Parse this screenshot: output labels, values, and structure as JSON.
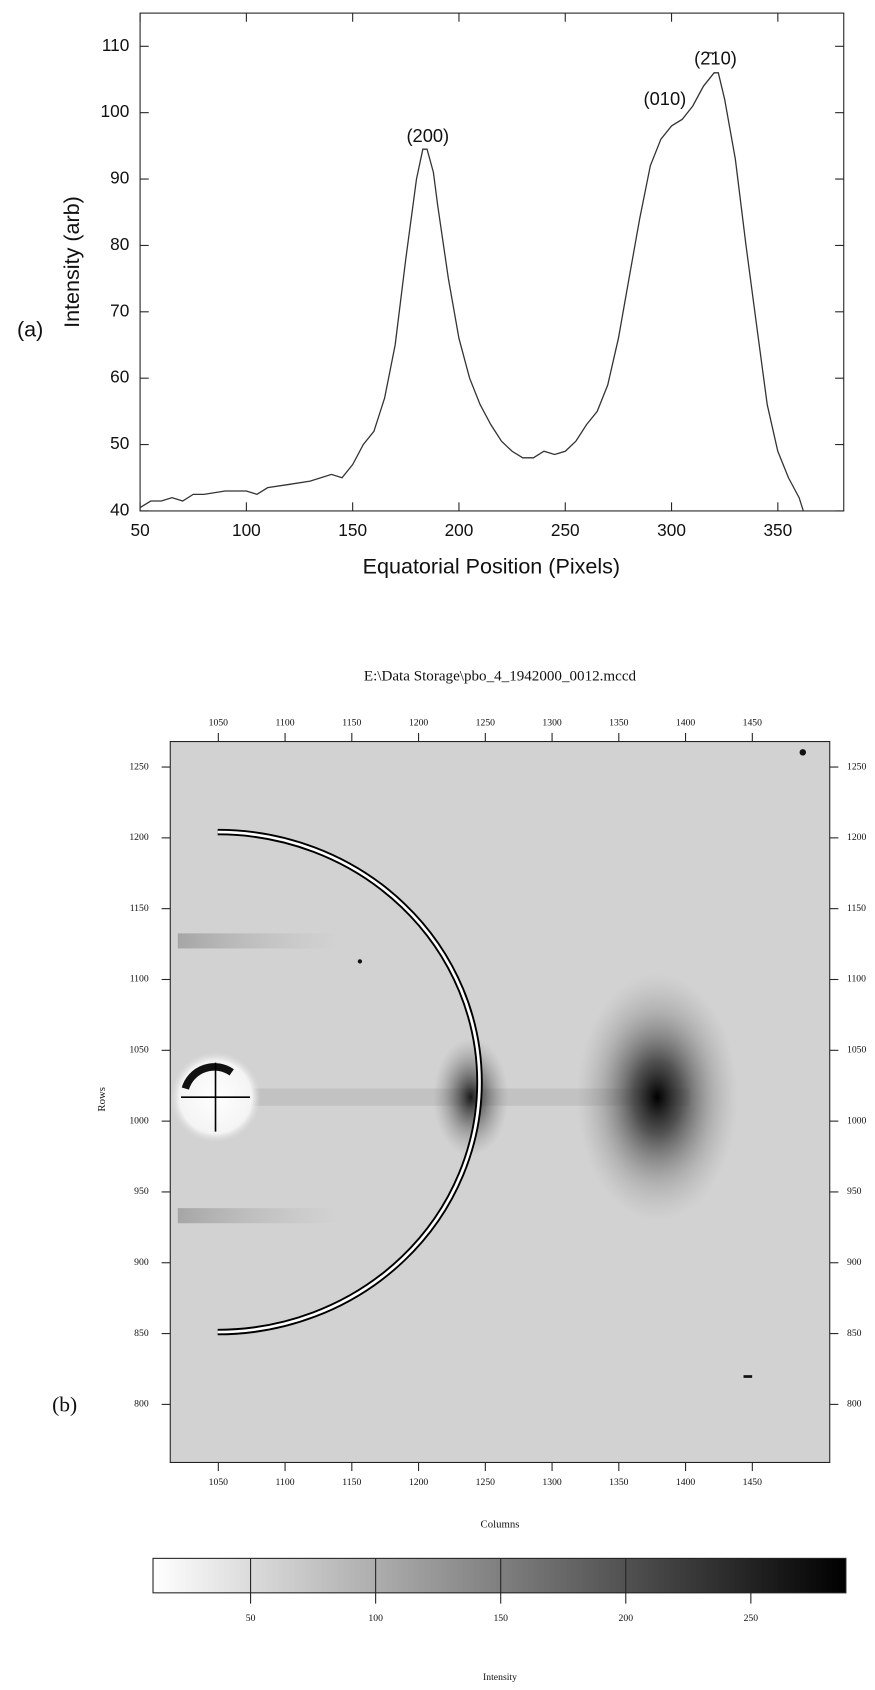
{
  "chart_data": [
    {
      "type": "line",
      "label": "(a)",
      "x_label": "Equatorial Position (Pixels)",
      "y_label": "Intensity (arb)",
      "x": [
        50,
        55,
        60,
        65,
        70,
        75,
        80,
        90,
        100,
        105,
        110,
        120,
        130,
        140,
        145,
        150,
        155,
        160,
        165,
        170,
        175,
        180,
        183,
        185,
        188,
        190,
        195,
        200,
        205,
        210,
        215,
        220,
        225,
        230,
        235,
        240,
        245,
        250,
        255,
        260,
        265,
        270,
        275,
        280,
        285,
        290,
        295,
        300,
        305,
        310,
        315,
        320,
        322,
        325,
        330,
        335,
        340,
        345,
        350,
        355,
        360,
        362
      ],
      "series": [
        {
          "color": "#333333",
          "values": [
            40.5,
            41.5,
            41.5,
            42,
            41.5,
            42.5,
            42.5,
            43,
            43,
            42.5,
            43.5,
            44,
            44.5,
            45.5,
            45,
            47,
            50,
            52,
            57,
            65,
            78,
            90,
            94.5,
            94.5,
            91,
            86,
            75,
            66,
            60,
            56,
            53,
            50.5,
            49,
            48,
            48,
            49,
            48.5,
            49,
            50.5,
            53,
            55,
            59,
            66,
            75,
            84,
            92,
            96,
            98,
            99,
            101,
            104,
            106,
            106,
            102,
            93,
            80,
            68,
            56,
            49,
            45,
            42,
            40
          ]
        }
      ],
      "xlim": [
        50,
        381
      ],
      "ylim": [
        40,
        115
      ],
      "xticks": [
        50,
        100,
        150,
        200,
        250,
        300,
        350
      ],
      "yticks": [
        40,
        50,
        60,
        70,
        80,
        90,
        100,
        110
      ],
      "annotations": [
        "(200)",
        "(010)",
        "(2̄10)"
      ]
    },
    {
      "type": "image",
      "label": "(b)",
      "title": "E:\\Data Storage\\pbo_4_1942000_0012.mccd",
      "x_label": "Columns",
      "y_label": "Rows",
      "xlim": [
        1014,
        1508
      ],
      "ylim": [
        759,
        1268
      ],
      "xticks": [
        1050,
        1100,
        1150,
        1200,
        1250,
        1300,
        1350,
        1400,
        1450
      ],
      "yticks": [
        800,
        850,
        900,
        950,
        1000,
        1050,
        1100,
        1150,
        1200,
        1250
      ]
    },
    {
      "type": "colorbar",
      "x_label": "Intensity",
      "xlim": [
        11,
        288
      ],
      "xticks": [
        50,
        100,
        150,
        200,
        250
      ]
    }
  ]
}
